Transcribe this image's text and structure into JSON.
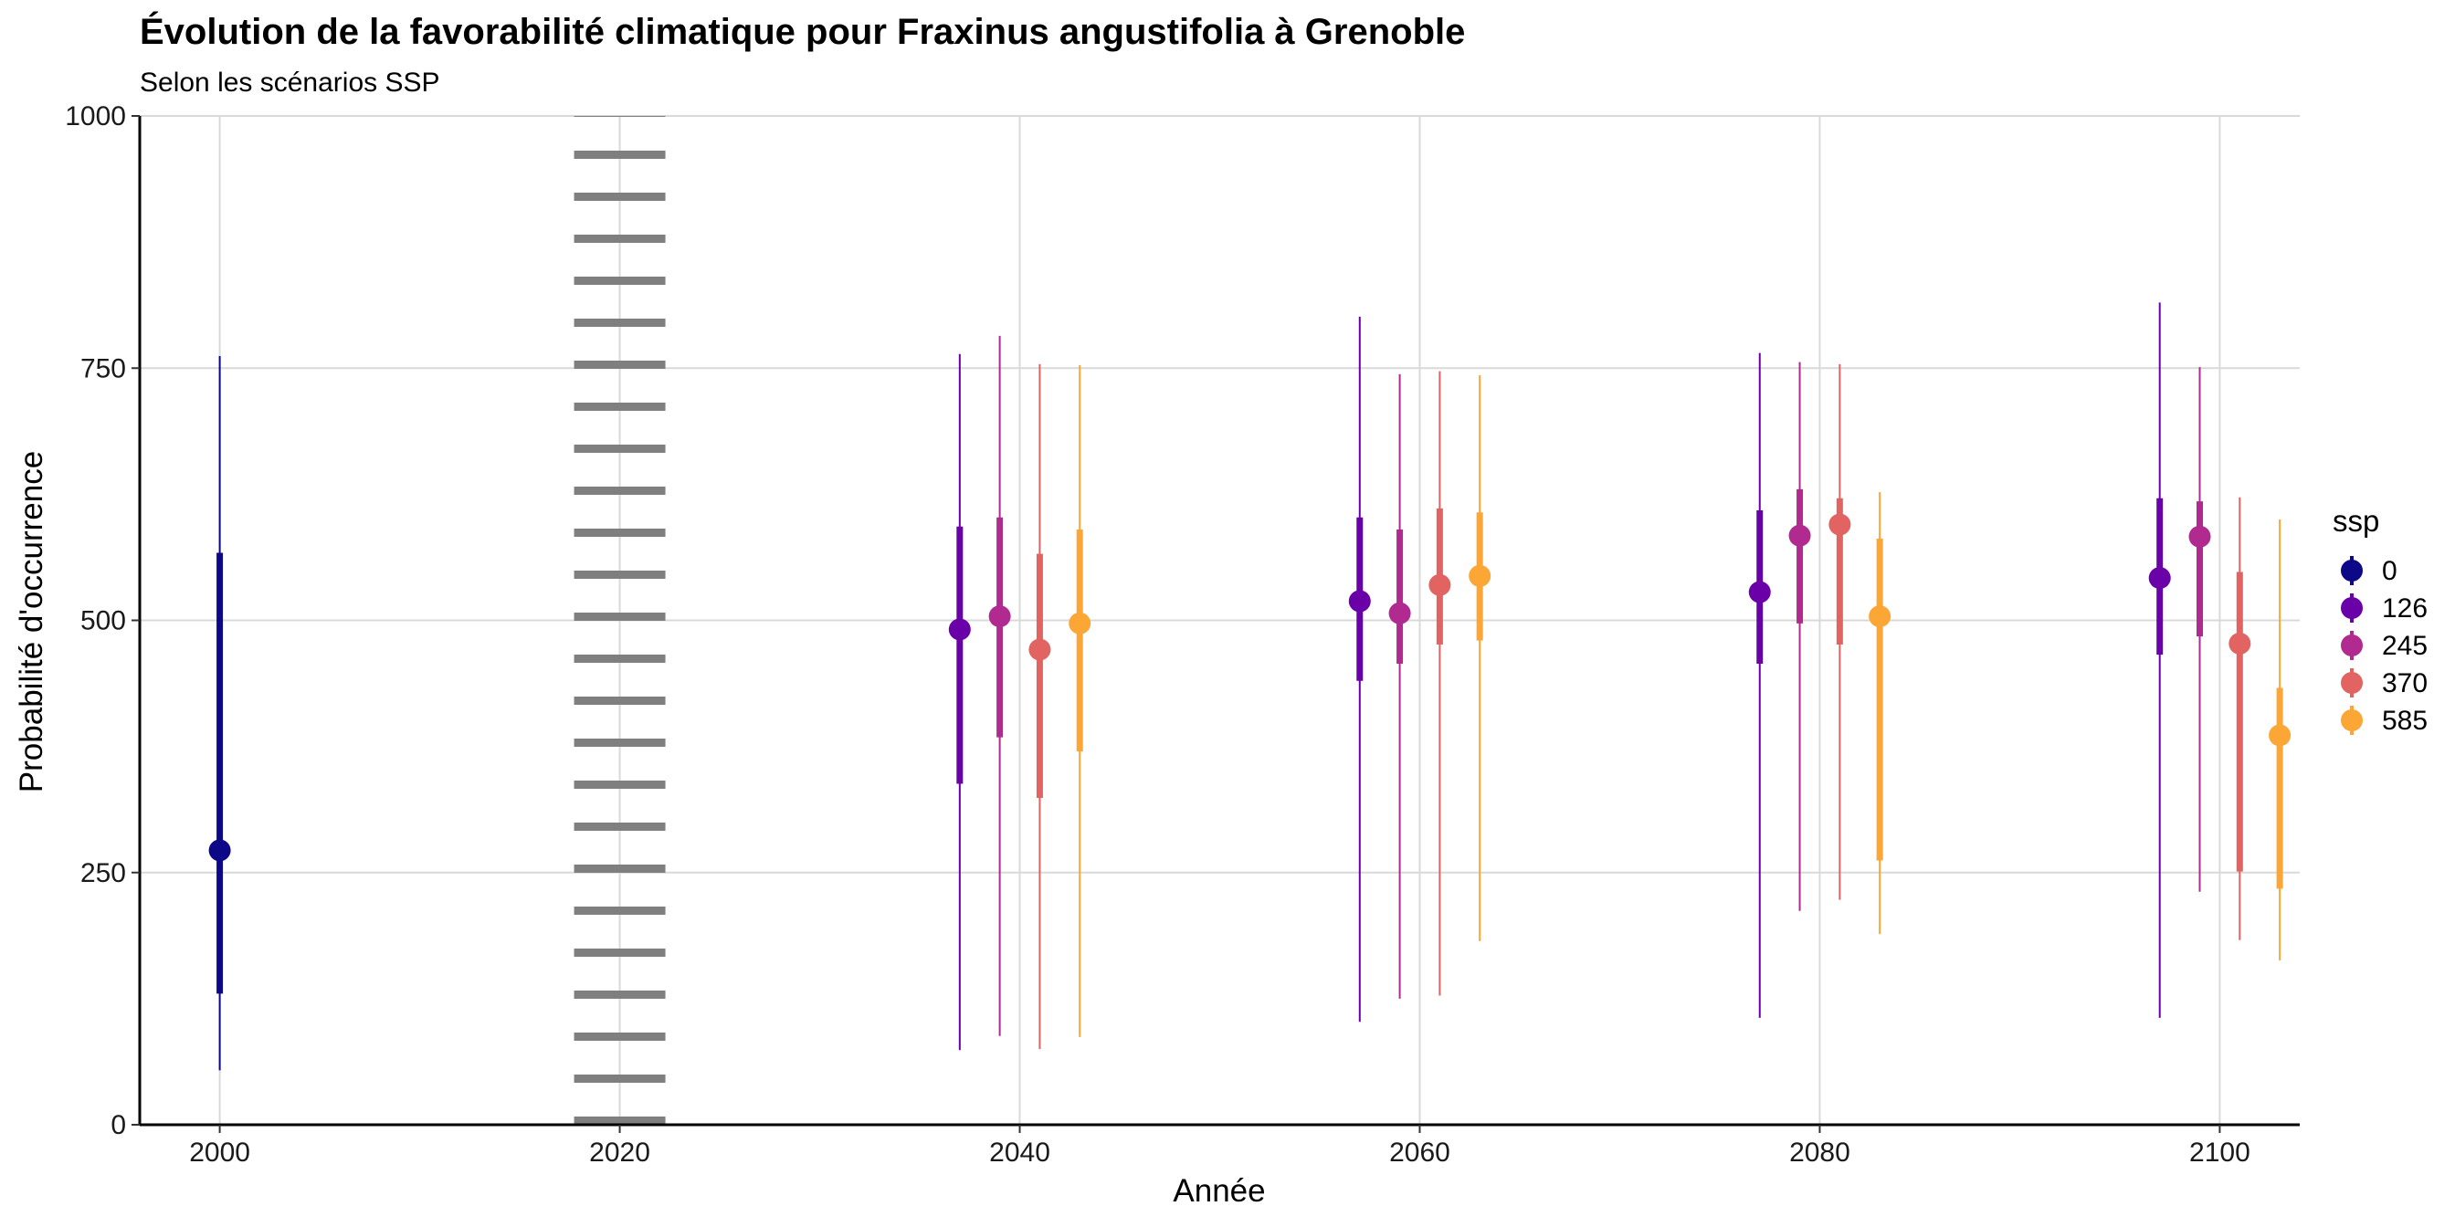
{
  "chart_data": {
    "type": "pointrange",
    "title": "Évolution de la favorabilité climatique pour Fraxinus angustifolia à Grenoble",
    "subtitle": "Selon les scénarios SSP",
    "xlabel": "Année",
    "ylabel": "Probabilité d'occurrence",
    "xlim": [
      1996,
      2104
    ],
    "ylim": [
      0,
      1000
    ],
    "x_ticks": [
      2000,
      2020,
      2040,
      2060,
      2080,
      2100
    ],
    "x_tick_labels": [
      "2000",
      "2020",
      "2040",
      "2060",
      "2080",
      "2100"
    ],
    "y_ticks": [
      0,
      250,
      500,
      750,
      1000
    ],
    "y_tick_labels": [
      "0",
      "250",
      "500",
      "750",
      "1000"
    ],
    "grid": "major",
    "reference_line": {
      "x": 2020,
      "style": "dotted"
    },
    "legend": {
      "title": "ssp",
      "position": "right",
      "entries": [
        {
          "label": "0",
          "color": "#0d0887"
        },
        {
          "label": "126",
          "color": "#6a00a8"
        },
        {
          "label": "245",
          "color": "#b12a90"
        },
        {
          "label": "370",
          "color": "#e16462"
        },
        {
          "label": "585",
          "color": "#fca636"
        }
      ]
    },
    "series": [
      {
        "name": "0",
        "color": "#0d0887",
        "points": [
          {
            "x": 2000,
            "y": 272,
            "lo_inner": 130,
            "hi_inner": 567,
            "lo_outer": 54,
            "hi_outer": 762
          }
        ]
      },
      {
        "name": "126",
        "color": "#6a00a8",
        "points": [
          {
            "x": 2037,
            "y": 491,
            "lo_inner": 338,
            "hi_inner": 593,
            "lo_outer": 74,
            "hi_outer": 764
          },
          {
            "x": 2057,
            "y": 519,
            "lo_inner": 440,
            "hi_inner": 602,
            "lo_outer": 102,
            "hi_outer": 801
          },
          {
            "x": 2077,
            "y": 528,
            "lo_inner": 457,
            "hi_inner": 609,
            "lo_outer": 106,
            "hi_outer": 765
          },
          {
            "x": 2097,
            "y": 542,
            "lo_inner": 466,
            "hi_inner": 621,
            "lo_outer": 106,
            "hi_outer": 815
          }
        ]
      },
      {
        "name": "245",
        "color": "#b12a90",
        "points": [
          {
            "x": 2039,
            "y": 504,
            "lo_inner": 384,
            "hi_inner": 602,
            "lo_outer": 88,
            "hi_outer": 782
          },
          {
            "x": 2059,
            "y": 507,
            "lo_inner": 457,
            "hi_inner": 590,
            "lo_outer": 125,
            "hi_outer": 744
          },
          {
            "x": 2079,
            "y": 584,
            "lo_inner": 497,
            "hi_inner": 630,
            "lo_outer": 212,
            "hi_outer": 756
          },
          {
            "x": 2099,
            "y": 583,
            "lo_inner": 484,
            "hi_inner": 618,
            "lo_outer": 231,
            "hi_outer": 751
          }
        ]
      },
      {
        "name": "370",
        "color": "#e16462",
        "points": [
          {
            "x": 2041,
            "y": 471,
            "lo_inner": 324,
            "hi_inner": 566,
            "lo_outer": 75,
            "hi_outer": 754
          },
          {
            "x": 2061,
            "y": 535,
            "lo_inner": 476,
            "hi_inner": 611,
            "lo_outer": 128,
            "hi_outer": 747
          },
          {
            "x": 2081,
            "y": 595,
            "lo_inner": 476,
            "hi_inner": 621,
            "lo_outer": 223,
            "hi_outer": 754
          },
          {
            "x": 2101,
            "y": 477,
            "lo_inner": 251,
            "hi_inner": 548,
            "lo_outer": 183,
            "hi_outer": 622
          }
        ]
      },
      {
        "name": "585",
        "color": "#fca636",
        "points": [
          {
            "x": 2043,
            "y": 497,
            "lo_inner": 370,
            "hi_inner": 590,
            "lo_outer": 87,
            "hi_outer": 753
          },
          {
            "x": 2063,
            "y": 544,
            "lo_inner": 480,
            "hi_inner": 607,
            "lo_outer": 182,
            "hi_outer": 743
          },
          {
            "x": 2083,
            "y": 504,
            "lo_inner": 262,
            "hi_inner": 581,
            "lo_outer": 189,
            "hi_outer": 627
          },
          {
            "x": 2103,
            "y": 386,
            "lo_inner": 234,
            "hi_inner": 433,
            "lo_outer": 163,
            "hi_outer": 600
          }
        ]
      }
    ]
  }
}
